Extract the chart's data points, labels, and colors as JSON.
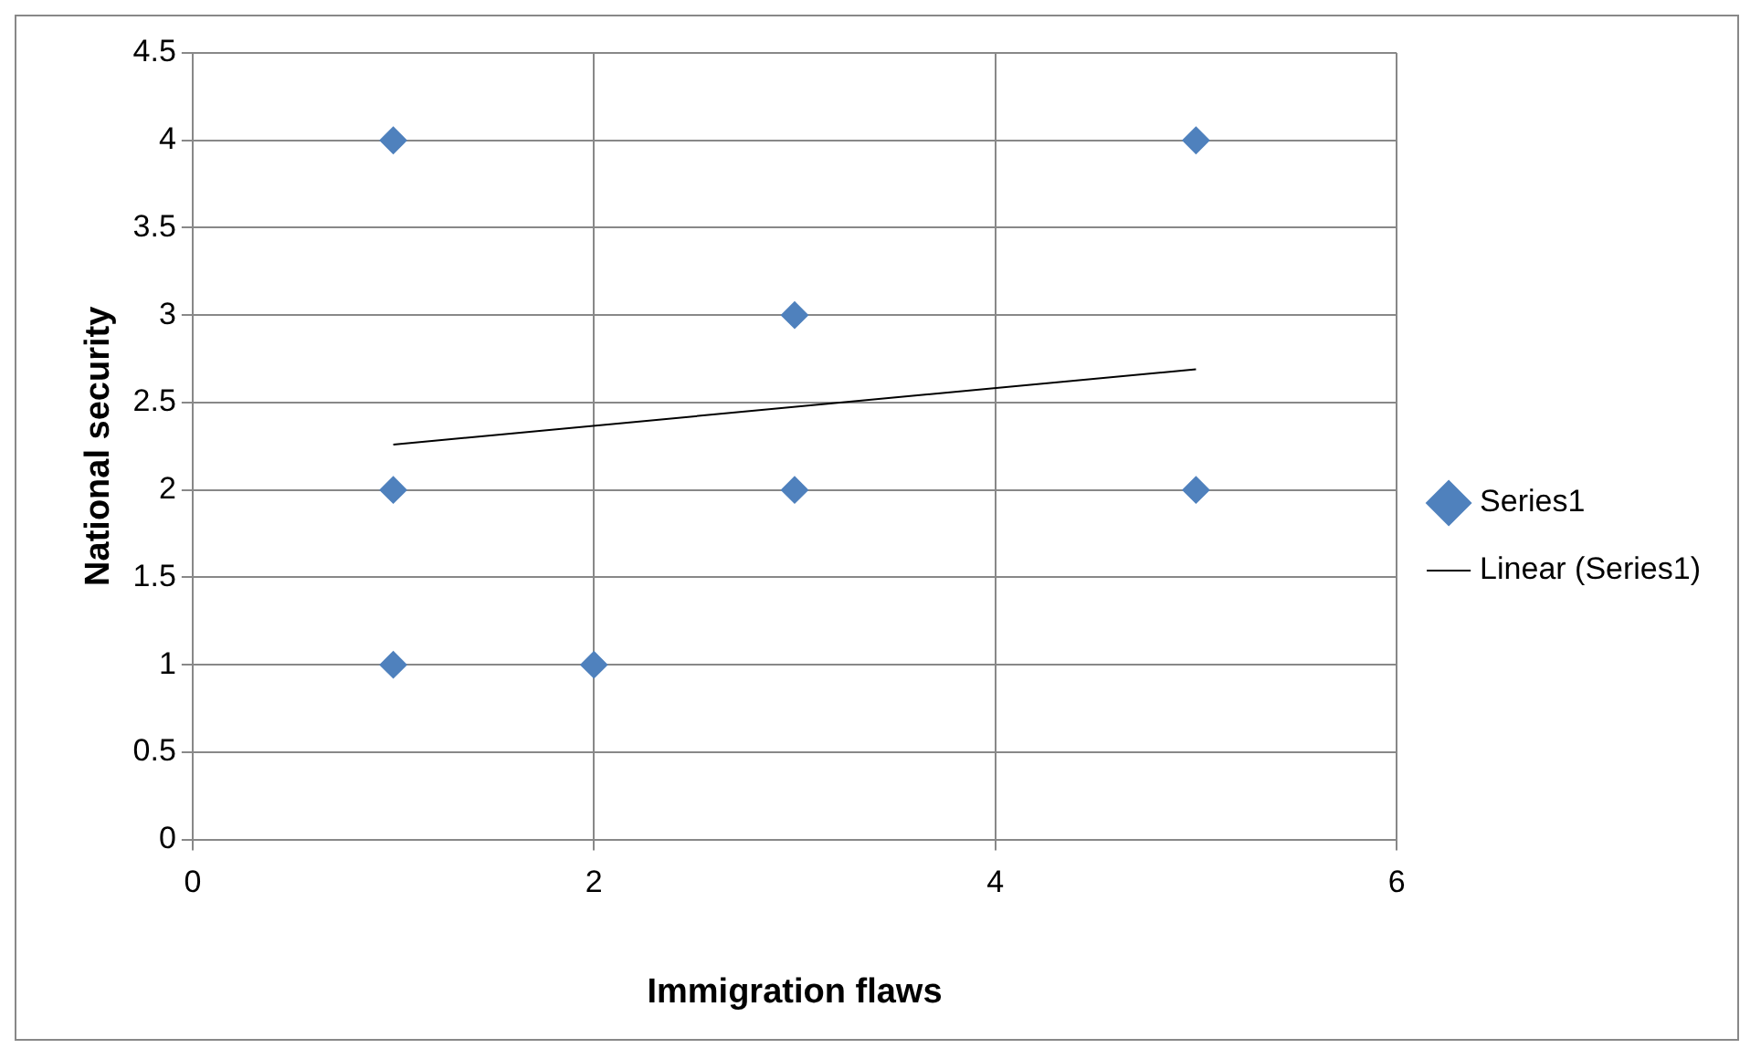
{
  "chart_data": {
    "type": "scatter",
    "xlabel": "Immigration flaws",
    "ylabel": "National security",
    "xlim": [
      0,
      6
    ],
    "xticks": [
      0,
      2,
      4,
      6
    ],
    "ylim": [
      0,
      4.5
    ],
    "yticks": [
      0,
      0.5,
      1,
      1.5,
      2,
      2.5,
      3,
      3.5,
      4,
      4.5
    ],
    "grid": true,
    "legend": "right",
    "series": [
      {
        "name": "Series1",
        "type": "scatter",
        "marker": "diamond",
        "color": "#4f81bd",
        "x": [
          1,
          5,
          3,
          1,
          3,
          5,
          1,
          2
        ],
        "values": [
          4,
          4,
          3,
          2,
          2,
          2,
          1,
          1
        ]
      },
      {
        "name": "Linear (Series1)",
        "type": "line",
        "marker": "none",
        "color": "#000000",
        "x": [
          1,
          5
        ],
        "values": [
          2.26,
          2.69
        ]
      }
    ]
  }
}
